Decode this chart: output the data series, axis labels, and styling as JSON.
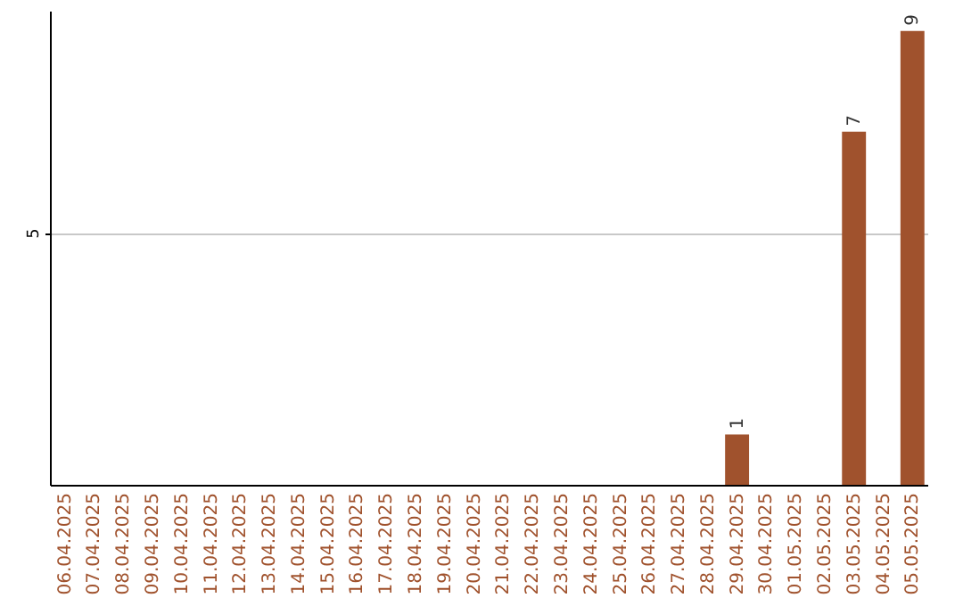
{
  "chart_data": {
    "type": "bar",
    "categories": [
      "06.04.2025",
      "07.04.2025",
      "08.04.2025",
      "09.04.2025",
      "10.04.2025",
      "11.04.2025",
      "12.04.2025",
      "13.04.2025",
      "14.04.2025",
      "15.04.2025",
      "16.04.2025",
      "17.04.2025",
      "18.04.2025",
      "19.04.2025",
      "20.04.2025",
      "21.04.2025",
      "22.04.2025",
      "23.04.2025",
      "24.04.2025",
      "25.04.2025",
      "26.04.2025",
      "27.04.2025",
      "28.04.2025",
      "29.04.2025",
      "30.04.2025",
      "01.05.2025",
      "02.05.2025",
      "03.05.2025",
      "04.05.2025",
      "05.05.2025"
    ],
    "values": [
      null,
      null,
      null,
      null,
      null,
      null,
      null,
      null,
      null,
      null,
      null,
      null,
      null,
      null,
      null,
      null,
      null,
      null,
      null,
      null,
      null,
      null,
      null,
      1,
      null,
      null,
      null,
      7,
      null,
      9
    ],
    "data_labels": true,
    "color": "#a0522d",
    "ylim": [
      0,
      9.4
    ],
    "yticks": [
      5
    ],
    "grid": "y"
  }
}
